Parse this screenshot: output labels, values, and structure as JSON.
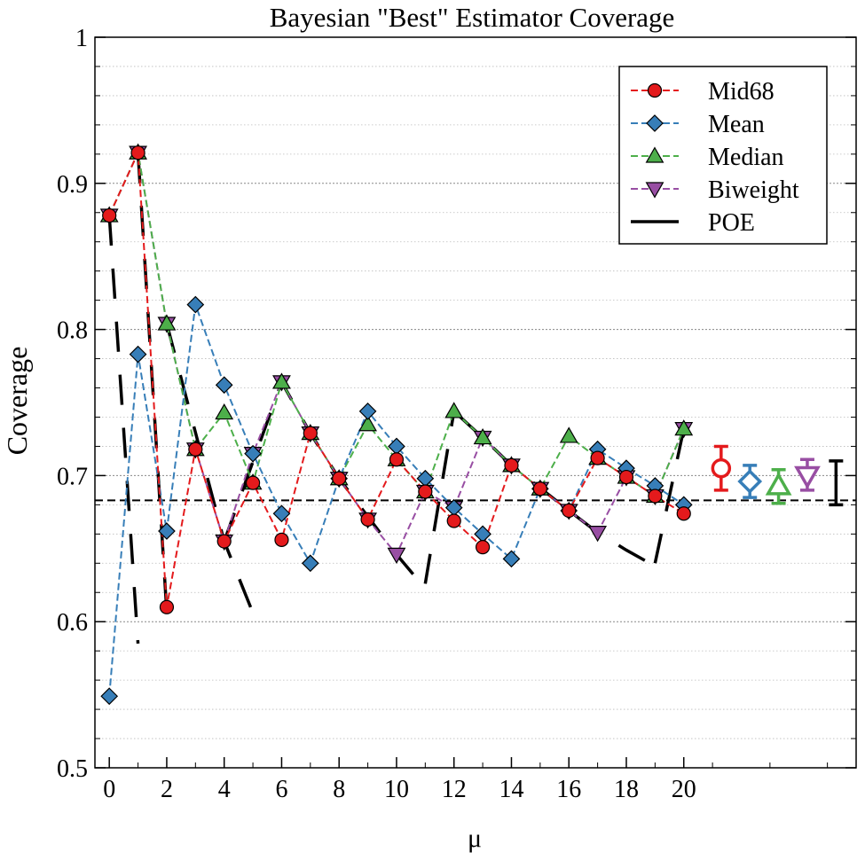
{
  "chart_data": {
    "type": "line",
    "title": "Bayesian \"Best\" Estimator Coverage",
    "xlabel": "μ",
    "ylabel": "Coverage",
    "xlim": [
      -0.5,
      26
    ],
    "ylim": [
      0.5,
      1.0
    ],
    "x_ticks": [
      0,
      2,
      4,
      6,
      8,
      10,
      12,
      14,
      16,
      18,
      20
    ],
    "y_ticks": [
      0.5,
      0.6,
      0.7,
      0.8,
      0.9,
      1.0
    ],
    "y_tick_labels": [
      "0.5",
      "0.6",
      "0.7",
      "0.8",
      "0.9",
      "1"
    ],
    "grid": "horizontal dotted",
    "legend_position": "top-right",
    "reference_line": {
      "y": 0.683,
      "style": "dashed"
    },
    "series": [
      {
        "name": "Mid68",
        "color": "#e41a1c",
        "marker": "circle",
        "x": [
          0,
          1,
          2,
          3,
          4,
          5,
          6,
          7,
          8,
          9,
          10,
          11,
          12,
          13,
          14,
          15,
          16,
          17,
          18,
          19,
          20
        ],
        "y": [
          0.878,
          0.921,
          0.61,
          0.718,
          0.655,
          0.695,
          0.656,
          0.729,
          0.698,
          0.67,
          0.711,
          0.689,
          0.669,
          0.651,
          0.707,
          0.691,
          0.676,
          0.712,
          0.699,
          0.686,
          0.674
        ]
      },
      {
        "name": "Mean",
        "color": "#377eb8",
        "marker": "diamond",
        "x": [
          0,
          1,
          2,
          3,
          4,
          5,
          6,
          7,
          8,
          9,
          10,
          11,
          12,
          13,
          14,
          15,
          16,
          17,
          18,
          19,
          20
        ],
        "y": [
          0.549,
          0.783,
          0.662,
          0.817,
          0.762,
          0.715,
          0.674,
          0.64,
          0.698,
          0.744,
          0.72,
          0.698,
          0.678,
          0.66,
          0.643,
          0.691,
          0.676,
          0.718,
          0.705,
          0.693,
          0.68
        ]
      },
      {
        "name": "Median",
        "color": "#4daf4a",
        "marker": "triangle-up",
        "x": [
          0,
          1,
          2,
          3,
          4,
          5,
          6,
          7,
          8,
          9,
          10,
          11,
          12,
          13,
          14,
          15,
          16,
          17,
          18,
          19,
          20
        ],
        "y": [
          0.878,
          0.921,
          0.804,
          0.718,
          0.743,
          0.695,
          0.764,
          0.729,
          0.698,
          0.735,
          0.711,
          0.689,
          0.744,
          0.726,
          0.707,
          0.691,
          0.727,
          0.712,
          0.699,
          0.686,
          0.732
        ]
      },
      {
        "name": "Biweight",
        "color": "#984ea3",
        "marker": "triangle-down",
        "x": [
          0,
          1,
          2,
          3,
          4,
          5,
          6,
          7,
          8,
          9,
          10,
          11,
          12,
          13,
          14,
          15,
          16,
          17,
          18,
          19,
          20
        ],
        "y": [
          0.878,
          0.921,
          0.804,
          0.718,
          0.655,
          0.715,
          0.764,
          0.729,
          0.698,
          0.67,
          0.646,
          0.689,
          0.678,
          0.726,
          0.707,
          0.691,
          0.676,
          0.661,
          0.699,
          0.686,
          0.732
        ]
      }
    ],
    "poe": {
      "name": "POE",
      "color": "#000000",
      "segments": [
        [
          [
            0,
            0.878
          ],
          [
            1,
            0.585
          ]
        ],
        [
          [
            1,
            0.921
          ],
          [
            2,
            0.607
          ]
        ],
        [
          [
            2,
            0.804
          ],
          [
            4,
            0.655
          ],
          [
            5,
            0.606
          ]
        ],
        [
          [
            4,
            0.655
          ],
          [
            6,
            0.764
          ],
          [
            7,
            0.729
          ],
          [
            8,
            0.698
          ],
          [
            10,
            0.646
          ],
          [
            10.6,
            0.632
          ]
        ],
        [
          [
            11,
            0.626
          ],
          [
            12,
            0.744
          ]
        ],
        [
          [
            12,
            0.744
          ],
          [
            13,
            0.726
          ],
          [
            14,
            0.707
          ],
          [
            16,
            0.676
          ],
          [
            17,
            0.661
          ],
          [
            18,
            0.649
          ],
          [
            19,
            0.638
          ]
        ],
        [
          [
            19,
            0.64
          ],
          [
            20,
            0.732
          ]
        ]
      ]
    },
    "summary_points": [
      {
        "series": "Mid68",
        "color": "#e41a1c",
        "marker": "circle",
        "x": 21.3,
        "y": 0.705,
        "low": 0.69,
        "high": 0.72
      },
      {
        "series": "Mean",
        "color": "#377eb8",
        "marker": "diamond",
        "x": 22.3,
        "y": 0.696,
        "low": 0.685,
        "high": 0.707
      },
      {
        "series": "Median",
        "color": "#4daf4a",
        "marker": "triangle-up",
        "x": 23.3,
        "y": 0.693,
        "low": 0.681,
        "high": 0.704
      },
      {
        "series": "Biweight",
        "color": "#984ea3",
        "marker": "triangle-down",
        "x": 24.3,
        "y": 0.7,
        "low": 0.69,
        "high": 0.711
      },
      {
        "series": "POE",
        "color": "#000000",
        "marker": "none",
        "x": 25.3,
        "y": 0.695,
        "low": 0.68,
        "high": 0.71
      }
    ]
  }
}
